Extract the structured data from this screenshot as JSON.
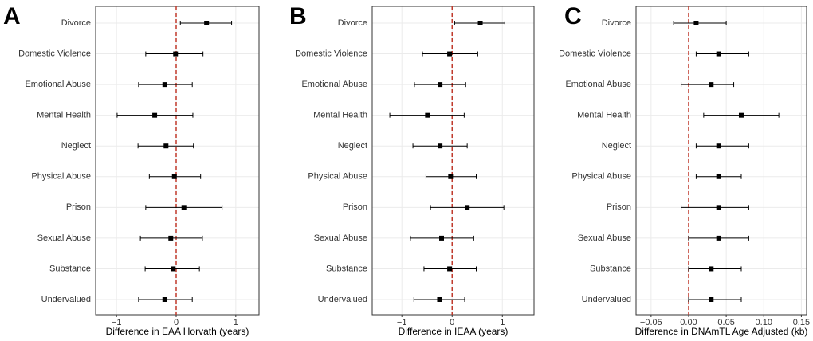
{
  "chart_data": [
    {
      "type": "forest",
      "label": "A",
      "xlabel": "Difference in EAA Horvath (years)",
      "categories": [
        "Divorce",
        "Domestic Violence",
        "Emotional Abuse",
        "Mental Health",
        "Neglect",
        "Physical Abuse",
        "Prison",
        "Sexual Abuse",
        "Substance",
        "Undervalued"
      ],
      "values": [
        0.51,
        -0.01,
        -0.19,
        -0.36,
        -0.17,
        -0.03,
        0.13,
        -0.09,
        -0.05,
        -0.19
      ],
      "lower": [
        0.07,
        -0.51,
        -0.63,
        -0.99,
        -0.64,
        -0.45,
        -0.51,
        -0.6,
        -0.52,
        -0.63
      ],
      "upper": [
        0.93,
        0.45,
        0.27,
        0.28,
        0.29,
        0.41,
        0.77,
        0.44,
        0.39,
        0.27
      ],
      "xlim": [
        -1.35,
        1.39
      ],
      "xticks": [
        {
          "value": -1,
          "label": "−1"
        },
        0,
        1
      ],
      "grid": true,
      "color": "#000000",
      "refline_color": "#c0392b"
    },
    {
      "type": "forest",
      "label": "B",
      "xlabel": "Difference in IEAA (years)",
      "categories": [
        "Divorce",
        "Domestic Violence",
        "Emotional Abuse",
        "Mental Health",
        "Neglect",
        "Physical Abuse",
        "Prison",
        "Sexual Abuse",
        "Substance",
        "Undervalued"
      ],
      "values": [
        0.56,
        -0.05,
        -0.24,
        -0.49,
        -0.24,
        -0.03,
        0.3,
        -0.21,
        -0.05,
        -0.25
      ],
      "lower": [
        0.05,
        -0.59,
        -0.75,
        -1.24,
        -0.78,
        -0.52,
        -0.43,
        -0.83,
        -0.56,
        -0.76
      ],
      "upper": [
        1.05,
        0.51,
        0.27,
        0.24,
        0.3,
        0.48,
        1.03,
        0.43,
        0.48,
        0.25
      ],
      "xlim": [
        -1.59,
        1.63
      ],
      "xticks": [
        {
          "value": -1,
          "label": "−1"
        },
        0,
        1
      ],
      "grid": true,
      "color": "#000000",
      "refline_color": "#c0392b"
    },
    {
      "type": "forest",
      "label": "C",
      "xlabel": "Difference in DNAmTL Age Adjusted (kb)",
      "categories": [
        "Divorce",
        "Domestic Violence",
        "Emotional Abuse",
        "Mental Health",
        "Neglect",
        "Physical Abuse",
        "Prison",
        "Sexual Abuse",
        "Substance",
        "Undervalued"
      ],
      "values": [
        0.01,
        0.04,
        0.03,
        0.07,
        0.04,
        0.04,
        0.04,
        0.04,
        0.03,
        0.03
      ],
      "lower": [
        -0.02,
        0.01,
        -0.01,
        0.02,
        0.01,
        0.01,
        -0.01,
        0.0,
        0.0,
        0.0
      ],
      "upper": [
        0.05,
        0.08,
        0.06,
        0.12,
        0.08,
        0.07,
        0.08,
        0.08,
        0.07,
        0.07
      ],
      "xlim": [
        -0.07,
        0.157
      ],
      "xticks": [
        {
          "value": -0.05,
          "label": "−0.05"
        },
        {
          "value": 0,
          "label": "0.00"
        },
        0.05,
        {
          "value": 0.1,
          "label": "0.10"
        },
        0.15
      ],
      "grid": true,
      "color": "#000000",
      "refline_color": "#c0392b"
    }
  ]
}
